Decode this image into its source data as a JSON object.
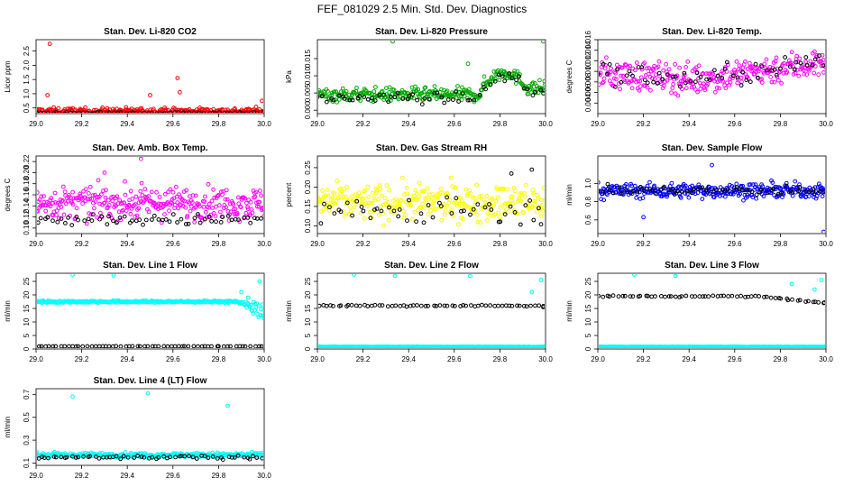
{
  "figure": {
    "title": "FEF_081029  2.5 Min. Std. Dev. Diagnostics"
  },
  "chart_data": [
    {
      "type": "scatter",
      "title": "Stan. Dev. Li-820 CO2",
      "ylabel": "Licor ppm",
      "xlim": [
        29.0,
        30.0
      ],
      "ylim": [
        0.3,
        2.9
      ],
      "xticks": [
        "29.0",
        "29.2",
        "29.4",
        "29.6",
        "29.8",
        "30.0"
      ],
      "yticks": [
        "0.5",
        "1.0",
        "1.5",
        "2.0",
        "2.5"
      ],
      "color": "#ff0000",
      "series": [
        {
          "name": "colored",
          "color": "#ff0000",
          "base": 0.38,
          "spread": 0.12,
          "n": 300,
          "outliers": [
            [
              29.06,
              2.75
            ],
            [
              29.62,
              1.55
            ],
            [
              29.63,
              1.05
            ],
            [
              29.5,
              0.95
            ],
            [
              29.05,
              0.95
            ],
            [
              29.99,
              0.75
            ]
          ]
        },
        {
          "name": "black",
          "color": "#000000",
          "base": 0.33,
          "spread": 0.02,
          "n": 60,
          "outliers": []
        }
      ]
    },
    {
      "type": "scatter",
      "title": "Stan. Dev. Li-820 Pressure",
      "ylabel": "kPa",
      "xlim": [
        29.0,
        30.0
      ],
      "ylim": [
        -0.001,
        0.0205
      ],
      "xticks": [
        "29.0",
        "29.2",
        "29.4",
        "29.6",
        "29.8",
        "30.0"
      ],
      "yticks": [
        "0.000",
        "0.005",
        "0.010",
        "0.015"
      ],
      "color": "#00aa00",
      "series": [
        {
          "name": "colored",
          "color": "#00aa00",
          "base": 0.0045,
          "spread": 0.002,
          "n": 300,
          "trend": "pressure",
          "outliers": [
            [
              29.33,
              0.02
            ],
            [
              29.99,
              0.02
            ],
            [
              29.66,
              0.0135
            ]
          ]
        },
        {
          "name": "black",
          "color": "#000000",
          "base": 0.0035,
          "spread": 0.0015,
          "n": 60,
          "trend": "pressure",
          "outliers": []
        }
      ]
    },
    {
      "type": "scatter",
      "title": "Stan. Dev. Li-820 Temp.",
      "ylabel": "degrees C",
      "xlim": [
        29.0,
        30.0
      ],
      "ylim": [
        0.002,
        0.016
      ],
      "xticks": [
        "29.0",
        "29.2",
        "29.4",
        "29.6",
        "29.8",
        "30.0"
      ],
      "yticks": [
        "0.004",
        "0.006",
        "0.008",
        "0.010",
        "0.012",
        "0.014",
        "0.016"
      ],
      "color": "#ff00ff",
      "series": [
        {
          "name": "colored",
          "color": "#ff00ff",
          "base": 0.0085,
          "spread": 0.0028,
          "n": 300,
          "trend": "temp",
          "outliers": []
        },
        {
          "name": "black",
          "color": "#000000",
          "base": 0.0085,
          "spread": 0.0022,
          "n": 60,
          "trend": "temp",
          "outliers": []
        }
      ]
    },
    {
      "type": "scatter",
      "title": "Stan. Dev. Amb. Box Temp.",
      "ylabel": "degrees C",
      "xlim": [
        29.0,
        30.0
      ],
      "ylim": [
        0.09,
        0.23
      ],
      "xticks": [
        "29.0",
        "29.2",
        "29.4",
        "29.6",
        "29.8",
        "30.0"
      ],
      "yticks": [
        "0.10",
        "0.12",
        "0.14",
        "0.16",
        "0.18",
        "0.20",
        "0.22"
      ],
      "color": "#ff00ff",
      "series": [
        {
          "name": "colored",
          "color": "#ff00ff",
          "base": 0.145,
          "spread": 0.028,
          "n": 320,
          "outliers": [
            [
              29.46,
              0.225
            ],
            [
              29.3,
              0.2
            ]
          ]
        },
        {
          "name": "black",
          "color": "#000000",
          "base": 0.115,
          "spread": 0.01,
          "n": 60,
          "outliers": []
        }
      ]
    },
    {
      "type": "scatter",
      "title": "Stan. Dev. Gas Stream RH",
      "ylabel": "percent",
      "xlim": [
        29.0,
        30.0
      ],
      "ylim": [
        0.08,
        0.28
      ],
      "xticks": [
        "29.0",
        "29.2",
        "29.4",
        "29.6",
        "29.8",
        "30.0"
      ],
      "yticks": [
        "0.10",
        "0.15",
        "0.20",
        "0.25"
      ],
      "color": "#ffff00",
      "series": [
        {
          "name": "colored",
          "color": "#ffff00",
          "base": 0.16,
          "spread": 0.045,
          "n": 320,
          "outliers": []
        },
        {
          "name": "black",
          "color": "#000000",
          "base": 0.14,
          "spread": 0.04,
          "n": 50,
          "outliers": [
            [
              29.85,
              0.235
            ],
            [
              29.94,
              0.245
            ]
          ]
        }
      ]
    },
    {
      "type": "scatter",
      "title": "Stan. Dev. Sample Flow",
      "ylabel": "ml/min",
      "xlim": [
        29.0,
        30.0
      ],
      "ylim": [
        0.45,
        1.3
      ],
      "xticks": [
        "29.0",
        "29.2",
        "29.4",
        "29.6",
        "29.8",
        "30.0"
      ],
      "yticks": [
        "0.6",
        "0.8",
        "1.0"
      ],
      "color": "#0000ff",
      "series": [
        {
          "name": "colored",
          "color": "#0000ff",
          "base": 0.92,
          "spread": 0.08,
          "n": 320,
          "outliers": [
            [
              29.99,
              0.47
            ],
            [
              29.2,
              0.63
            ],
            [
              29.5,
              1.2
            ]
          ]
        },
        {
          "name": "black",
          "color": "#000000",
          "base": 0.92,
          "spread": 0.05,
          "n": 60,
          "outliers": []
        }
      ]
    },
    {
      "type": "scatter",
      "title": "Stan. Dev. Line 1 Flow",
      "ylabel": "ml/min",
      "xlim": [
        29.0,
        30.0
      ],
      "ylim": [
        0,
        28
      ],
      "xticks": [
        "29.0",
        "29.2",
        "29.4",
        "29.6",
        "29.8",
        "30.0"
      ],
      "yticks": [
        "0",
        "5",
        "10",
        "15",
        "20",
        "25"
      ],
      "color": "#00ffff",
      "series": [
        {
          "name": "colored",
          "color": "#00ffff",
          "base": 17.5,
          "spread": 0.4,
          "n": 300,
          "trend": "dropend",
          "outliers": [
            [
              29.16,
              27.5
            ],
            [
              29.34,
              27.2
            ],
            [
              29.98,
              25.0
            ],
            [
              29.9,
              21.0
            ],
            [
              29.93,
              19.0
            ]
          ]
        },
        {
          "name": "black",
          "color": "#000000",
          "base": 1.0,
          "spread": 0.05,
          "n": 60,
          "outliers": []
        }
      ]
    },
    {
      "type": "scatter",
      "title": "Stan. Dev. Line 2 Flow",
      "ylabel": "ml/min",
      "xlim": [
        29.0,
        30.0
      ],
      "ylim": [
        0,
        28
      ],
      "xticks": [
        "29.0",
        "29.2",
        "29.4",
        "29.6",
        "29.8",
        "30.0"
      ],
      "yticks": [
        "0",
        "5",
        "10",
        "15",
        "20",
        "25"
      ],
      "color": "#00ffff",
      "series": [
        {
          "name": "colored",
          "color": "#00ffff",
          "base": 0.8,
          "spread": 0.1,
          "n": 300,
          "trend": "cyanlow",
          "outliers": [
            [
              29.16,
              27.5
            ],
            [
              29.34,
              27.0
            ],
            [
              29.98,
              25.5
            ],
            [
              29.94,
              21.0
            ],
            [
              29.67,
              27.0
            ]
          ]
        },
        {
          "name": "black",
          "color": "#000000",
          "base": 16.0,
          "spread": 0.3,
          "n": 60,
          "outliers": [
            [
              29.99,
              15.5
            ]
          ]
        }
      ]
    },
    {
      "type": "scatter",
      "title": "Stan. Dev. Line 3 Flow",
      "ylabel": "ml/min",
      "xlim": [
        29.0,
        30.0
      ],
      "ylim": [
        0,
        28
      ],
      "xticks": [
        "29.0",
        "29.2",
        "29.4",
        "29.6",
        "29.8",
        "30.0"
      ],
      "yticks": [
        "0",
        "5",
        "10",
        "15",
        "20",
        "25"
      ],
      "color": "#00ffff",
      "series": [
        {
          "name": "colored",
          "color": "#00ffff",
          "base": 0.8,
          "spread": 0.1,
          "n": 300,
          "trend": "cyanlow3",
          "outliers": [
            [
              29.16,
              27.5
            ],
            [
              29.34,
              27.0
            ],
            [
              29.98,
              25.5
            ],
            [
              29.95,
              22.0
            ],
            [
              29.85,
              24.0
            ]
          ]
        },
        {
          "name": "black",
          "color": "#000000",
          "base": 19.5,
          "spread": 0.3,
          "n": 60,
          "trend": "blackdip",
          "outliers": [
            [
              29.99,
              17.0
            ]
          ]
        }
      ]
    },
    {
      "type": "scatter",
      "title": "Stan. Dev. Line 4 (LT) Flow",
      "ylabel": "ml/min",
      "xlim": [
        29.0,
        30.0
      ],
      "ylim": [
        0.08,
        0.75
      ],
      "xticks": [
        "29.0",
        "29.2",
        "29.4",
        "29.6",
        "29.8",
        "30.0"
      ],
      "yticks": [
        "0.1",
        "0.3",
        "0.5",
        "0.7"
      ],
      "color": "#00ffff",
      "series": [
        {
          "name": "colored",
          "color": "#00ffff",
          "base": 0.17,
          "spread": 0.02,
          "n": 300,
          "outliers": [
            [
              29.16,
              0.68
            ],
            [
              29.49,
              0.71
            ],
            [
              29.84,
              0.6
            ]
          ]
        },
        {
          "name": "black",
          "color": "#000000",
          "base": 0.15,
          "spread": 0.015,
          "n": 60,
          "outliers": []
        }
      ]
    }
  ]
}
